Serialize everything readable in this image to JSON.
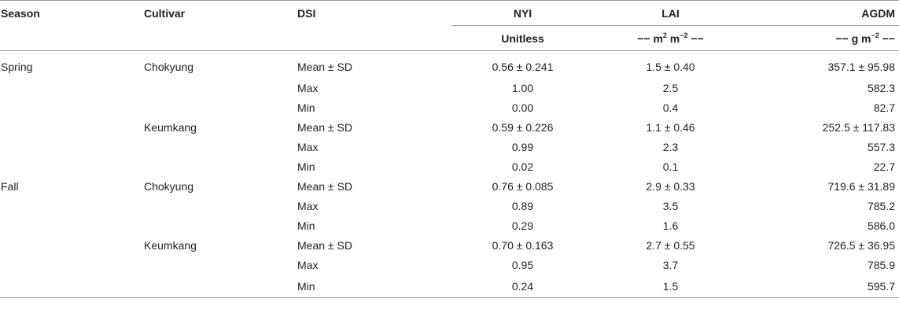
{
  "headers": {
    "season": "Season",
    "cultivar": "Cultivar",
    "dsi": "DSI",
    "nyi": "NYI",
    "lai": "LAI",
    "agdm": "AGDM"
  },
  "units": {
    "nyi": "Unitless",
    "lai_prefix": "−− m",
    "lai_sup1": "2",
    "lai_mid": " m",
    "lai_sup2": "−2",
    "lai_suffix": " −−",
    "agdm_prefix": "−− g m",
    "agdm_sup": "−2",
    "agdm_suffix": " −−"
  },
  "rows": [
    {
      "season": "Spring",
      "cultivar": "Chokyung",
      "dsi": "Mean ± SD",
      "nyi": "0.56 ± 0.241",
      "lai": "1.5 ± 0.40",
      "agdm": "357.1 ± 95.98"
    },
    {
      "season": "",
      "cultivar": "",
      "dsi": "Max",
      "nyi": "1.00",
      "lai": "2.5",
      "agdm": "582.3"
    },
    {
      "season": "",
      "cultivar": "",
      "dsi": "Min",
      "nyi": "0.00",
      "lai": "0.4",
      "agdm": "82.7"
    },
    {
      "season": "",
      "cultivar": "Keumkang",
      "dsi": "Mean ± SD",
      "nyi": "0.59 ± 0.226",
      "lai": "1.1 ± 0.46",
      "agdm": "252.5 ± 117.83"
    },
    {
      "season": "",
      "cultivar": "",
      "dsi": "Max",
      "nyi": "0.99",
      "lai": "2.3",
      "agdm": "557.3"
    },
    {
      "season": "",
      "cultivar": "",
      "dsi": "Min",
      "nyi": "0.02",
      "lai": "0.1",
      "agdm": "22.7"
    },
    {
      "season": "Fall",
      "cultivar": "Chokyung",
      "dsi": "Mean ± SD",
      "nyi": "0.76 ± 0.085",
      "lai": "2.9 ± 0.33",
      "agdm": "719.6 ± 31.89"
    },
    {
      "season": "",
      "cultivar": "",
      "dsi": "Max",
      "nyi": "0.89",
      "lai": "3.5",
      "agdm": "785.2"
    },
    {
      "season": "",
      "cultivar": "",
      "dsi": "Min",
      "nyi": "0.29",
      "lai": "1.6",
      "agdm": "586.0"
    },
    {
      "season": "",
      "cultivar": "Keumkang",
      "dsi": "Mean ± SD",
      "nyi": "0.70 ± 0.163",
      "lai": "2.7 ± 0.55",
      "agdm": "726.5 ± 36.95"
    },
    {
      "season": "",
      "cultivar": "",
      "dsi": "Max",
      "nyi": "0.95",
      "lai": "3.7",
      "agdm": "785.9"
    },
    {
      "season": "",
      "cultivar": "",
      "dsi": "Min",
      "nyi": "0.24",
      "lai": "1.5",
      "agdm": "595.7"
    }
  ]
}
